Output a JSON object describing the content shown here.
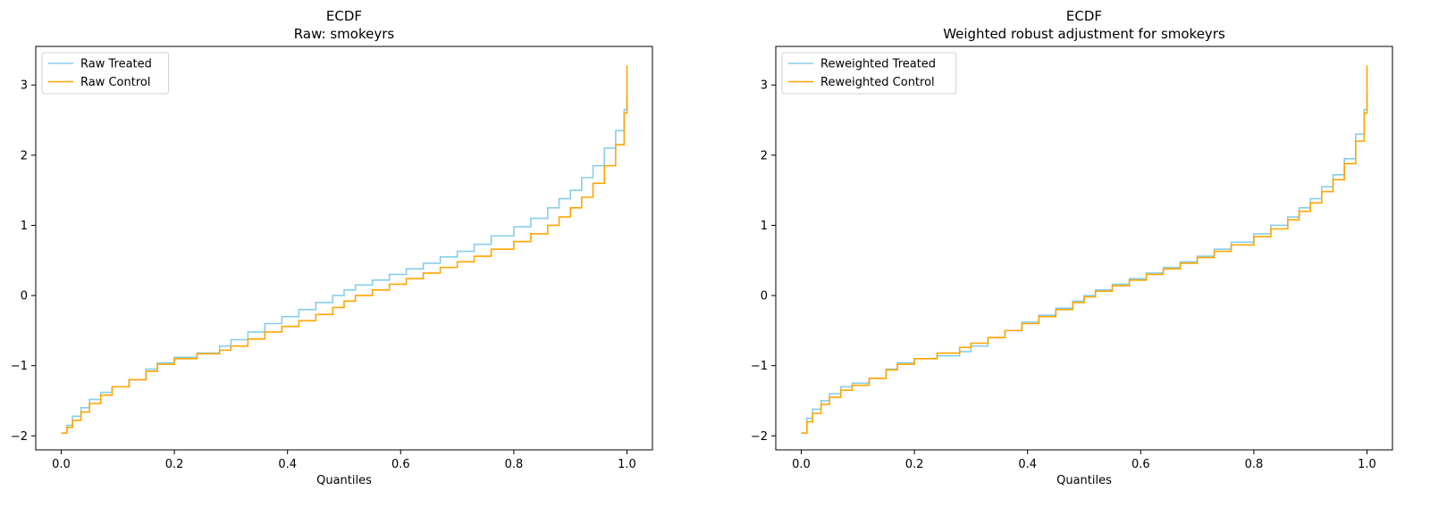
{
  "chart_data": [
    {
      "type": "line",
      "title": "ECDF",
      "subtitle": "Raw: smokeyrs",
      "xlabel": "Quantiles",
      "ylabel": "",
      "xlim": [
        -0.045,
        1.045
      ],
      "ylim": [
        -2.2,
        3.55
      ],
      "xticks": [
        0.0,
        0.2,
        0.4,
        0.6,
        0.8,
        1.0
      ],
      "xtick_labels": [
        "0.0",
        "0.2",
        "0.4",
        "0.6",
        "0.8",
        "1.0"
      ],
      "yticks": [
        -2,
        -1,
        0,
        1,
        2,
        3
      ],
      "ytick_labels": [
        "−2",
        "−1",
        "0",
        "1",
        "2",
        "3"
      ],
      "grid": false,
      "legend_position": "top-left",
      "series": [
        {
          "name": "Raw Treated",
          "color": "#87ceeb",
          "x": [
            0.0,
            0.01,
            0.02,
            0.035,
            0.05,
            0.07,
            0.09,
            0.12,
            0.15,
            0.17,
            0.2,
            0.24,
            0.28,
            0.3,
            0.33,
            0.36,
            0.39,
            0.42,
            0.45,
            0.48,
            0.5,
            0.52,
            0.55,
            0.58,
            0.61,
            0.64,
            0.67,
            0.7,
            0.73,
            0.76,
            0.8,
            0.83,
            0.86,
            0.88,
            0.9,
            0.92,
            0.94,
            0.96,
            0.98,
            0.995,
            1.0
          ],
          "y": [
            -1.96,
            -1.85,
            -1.72,
            -1.6,
            -1.48,
            -1.38,
            -1.3,
            -1.2,
            -1.05,
            -0.96,
            -0.88,
            -0.82,
            -0.72,
            -0.63,
            -0.52,
            -0.4,
            -0.3,
            -0.2,
            -0.1,
            0.0,
            0.08,
            0.15,
            0.22,
            0.3,
            0.38,
            0.46,
            0.55,
            0.63,
            0.73,
            0.85,
            0.98,
            1.1,
            1.25,
            1.38,
            1.5,
            1.68,
            1.85,
            2.1,
            2.35,
            2.65,
            2.85
          ]
        },
        {
          "name": "Raw Control",
          "color": "#ffa500",
          "x": [
            0.0,
            0.01,
            0.02,
            0.035,
            0.05,
            0.07,
            0.09,
            0.12,
            0.15,
            0.17,
            0.2,
            0.24,
            0.28,
            0.3,
            0.33,
            0.36,
            0.39,
            0.42,
            0.45,
            0.48,
            0.5,
            0.52,
            0.55,
            0.58,
            0.61,
            0.64,
            0.67,
            0.7,
            0.73,
            0.76,
            0.8,
            0.83,
            0.86,
            0.88,
            0.9,
            0.92,
            0.94,
            0.96,
            0.98,
            0.995,
            1.0
          ],
          "y": [
            -1.96,
            -1.88,
            -1.78,
            -1.66,
            -1.54,
            -1.42,
            -1.3,
            -1.2,
            -1.08,
            -0.98,
            -0.9,
            -0.83,
            -0.78,
            -0.72,
            -0.62,
            -0.52,
            -0.44,
            -0.36,
            -0.27,
            -0.17,
            -0.08,
            0.0,
            0.08,
            0.16,
            0.24,
            0.32,
            0.4,
            0.48,
            0.56,
            0.66,
            0.77,
            0.88,
            1.0,
            1.12,
            1.25,
            1.4,
            1.6,
            1.85,
            2.15,
            2.6,
            3.28
          ]
        }
      ]
    },
    {
      "type": "line",
      "title": "ECDF",
      "subtitle": "Weighted robust adjustment for smokeyrs",
      "xlabel": "Quantiles",
      "ylabel": "",
      "xlim": [
        -0.045,
        1.045
      ],
      "ylim": [
        -2.2,
        3.55
      ],
      "xticks": [
        0.0,
        0.2,
        0.4,
        0.6,
        0.8,
        1.0
      ],
      "xtick_labels": [
        "0.0",
        "0.2",
        "0.4",
        "0.6",
        "0.8",
        "1.0"
      ],
      "yticks": [
        -2,
        -1,
        0,
        1,
        2,
        3
      ],
      "ytick_labels": [
        "−2",
        "−1",
        "0",
        "1",
        "2",
        "3"
      ],
      "grid": false,
      "legend_position": "top-left",
      "series": [
        {
          "name": "Reweighted Treated",
          "color": "#87ceeb",
          "x": [
            0.0,
            0.01,
            0.02,
            0.035,
            0.05,
            0.07,
            0.09,
            0.12,
            0.15,
            0.17,
            0.2,
            0.24,
            0.28,
            0.3,
            0.33,
            0.36,
            0.39,
            0.42,
            0.45,
            0.48,
            0.5,
            0.52,
            0.55,
            0.58,
            0.61,
            0.64,
            0.67,
            0.7,
            0.73,
            0.76,
            0.8,
            0.83,
            0.86,
            0.88,
            0.9,
            0.92,
            0.94,
            0.96,
            0.98,
            0.995,
            1.0
          ],
          "y": [
            -1.96,
            -1.75,
            -1.62,
            -1.5,
            -1.4,
            -1.3,
            -1.25,
            -1.18,
            -1.05,
            -0.96,
            -0.9,
            -0.86,
            -0.8,
            -0.72,
            -0.6,
            -0.5,
            -0.38,
            -0.28,
            -0.18,
            -0.08,
            0.0,
            0.08,
            0.16,
            0.24,
            0.32,
            0.4,
            0.48,
            0.56,
            0.66,
            0.76,
            0.88,
            1.0,
            1.12,
            1.25,
            1.38,
            1.55,
            1.72,
            1.95,
            2.3,
            2.65,
            2.9
          ]
        },
        {
          "name": "Reweighted Control",
          "color": "#ffa500",
          "x": [
            0.0,
            0.01,
            0.02,
            0.035,
            0.05,
            0.07,
            0.09,
            0.12,
            0.15,
            0.17,
            0.2,
            0.24,
            0.28,
            0.3,
            0.33,
            0.36,
            0.39,
            0.42,
            0.45,
            0.48,
            0.5,
            0.52,
            0.55,
            0.58,
            0.61,
            0.64,
            0.67,
            0.7,
            0.73,
            0.76,
            0.8,
            0.83,
            0.86,
            0.88,
            0.9,
            0.92,
            0.94,
            0.96,
            0.98,
            0.995,
            1.0
          ],
          "y": [
            -1.96,
            -1.8,
            -1.68,
            -1.55,
            -1.45,
            -1.35,
            -1.28,
            -1.18,
            -1.06,
            -0.98,
            -0.9,
            -0.82,
            -0.74,
            -0.68,
            -0.6,
            -0.5,
            -0.4,
            -0.3,
            -0.2,
            -0.1,
            -0.02,
            0.06,
            0.14,
            0.22,
            0.3,
            0.38,
            0.46,
            0.54,
            0.63,
            0.72,
            0.84,
            0.95,
            1.08,
            1.2,
            1.32,
            1.48,
            1.65,
            1.88,
            2.2,
            2.6,
            3.28
          ]
        }
      ]
    }
  ]
}
